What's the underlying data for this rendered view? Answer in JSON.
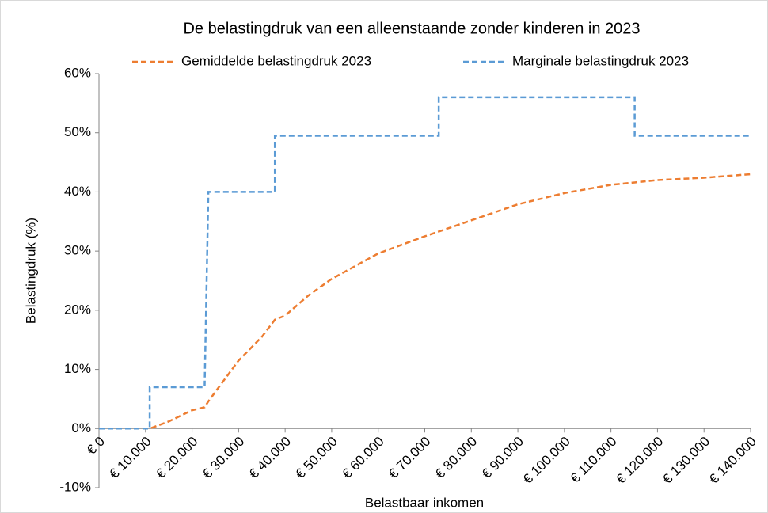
{
  "chart_data": {
    "type": "line",
    "title": "De belastingdruk van een alleenstaande zonder kinderen in 2023",
    "x_label": "Belastbaar inkomen",
    "y_label": "Belastingdruk (%)",
    "x": [
      0,
      10900,
      10900,
      15000,
      20000,
      22700,
      23500,
      25000,
      30000,
      35000,
      37800,
      37800,
      40000,
      45000,
      50000,
      60000,
      70000,
      73000,
      73000,
      80000,
      90000,
      100000,
      110000,
      115100,
      115100,
      120000,
      130000,
      140000
    ],
    "series": [
      {
        "name": "Gemiddelde belastingdruk 2023",
        "color": "#ed7d31",
        "values": [
          0,
          0,
          0,
          1.2,
          3.1,
          3.6,
          4.6,
          6.2,
          11.5,
          15.5,
          18.4,
          18.4,
          19.1,
          22.5,
          25.3,
          29.6,
          32.5,
          33.3,
          33.3,
          35.2,
          37.9,
          39.8,
          41.2,
          41.6,
          41.6,
          42.0,
          42.4,
          43.0
        ]
      },
      {
        "name": "Marginale belastingdruk 2023",
        "color": "#5b9bd5",
        "values": [
          0,
          0,
          7,
          7,
          7,
          7,
          40,
          40,
          40,
          40,
          40,
          49.5,
          49.5,
          49.5,
          49.5,
          49.5,
          49.5,
          49.5,
          56,
          56,
          56,
          56,
          56,
          56,
          49.5,
          49.5,
          49.5,
          49.5
        ]
      }
    ],
    "xlim": [
      0,
      140000
    ],
    "xticks": [
      {
        "value": 0,
        "label": "€ 0"
      },
      {
        "value": 10000,
        "label": "€ 10.000"
      },
      {
        "value": 20000,
        "label": "€ 20.000"
      },
      {
        "value": 30000,
        "label": "€ 30.000"
      },
      {
        "value": 40000,
        "label": "€ 40.000"
      },
      {
        "value": 50000,
        "label": "€ 50.000"
      },
      {
        "value": 60000,
        "label": "€ 60.000"
      },
      {
        "value": 70000,
        "label": "€ 70.000"
      },
      {
        "value": 80000,
        "label": "€ 80.000"
      },
      {
        "value": 90000,
        "label": "€ 90.000"
      },
      {
        "value": 100000,
        "label": "€ 100.000"
      },
      {
        "value": 110000,
        "label": "€ 110.000"
      },
      {
        "value": 120000,
        "label": "€ 120.000"
      },
      {
        "value": 130000,
        "label": "€ 130.000"
      },
      {
        "value": 140000,
        "label": "€ 140.000"
      }
    ],
    "ylim": [
      -10,
      60
    ],
    "yticks": [
      {
        "value": -10,
        "label": "-10%"
      },
      {
        "value": 0,
        "label": "0%"
      },
      {
        "value": 10,
        "label": "10%"
      },
      {
        "value": 20,
        "label": "20%"
      },
      {
        "value": 30,
        "label": "30%"
      },
      {
        "value": 40,
        "label": "40%"
      },
      {
        "value": 50,
        "label": "50%"
      },
      {
        "value": 60,
        "label": "60%"
      }
    ],
    "grid": false,
    "dashed": true
  }
}
